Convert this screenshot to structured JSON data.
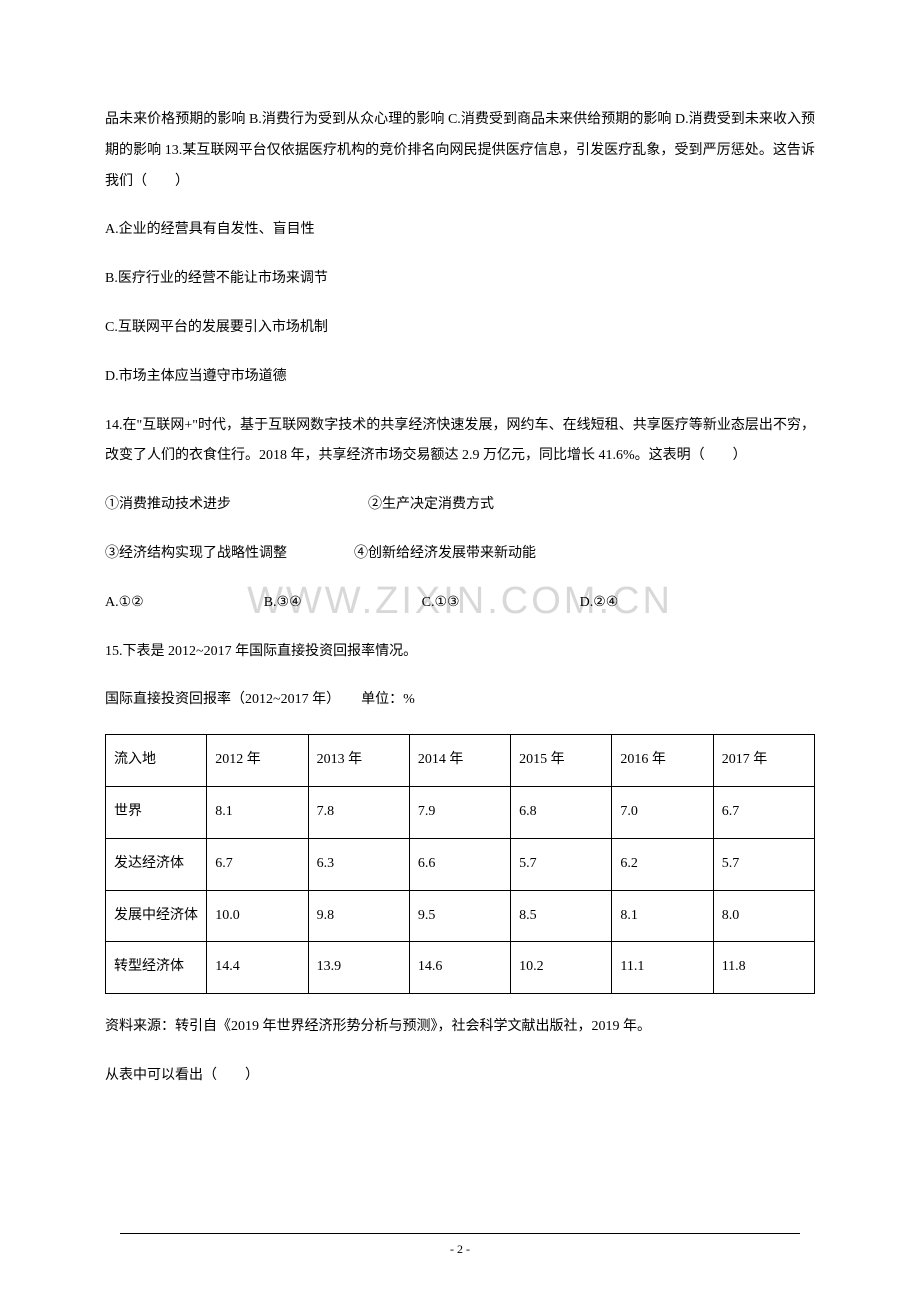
{
  "intro_paragraph": "品未来价格预期的影响 B.消费行为受到从众心理的影响 C.消费受到商品未来供给预期的影响 D.消费受到未来收入预期的影响 13.某互联网平台仅依据医疗机构的竞价排名向网民提供医疗信息，引发医疗乱象，受到严厉惩处。这告诉我们（　　）",
  "q13": {
    "optA": "A.企业的经营具有自发性、盲目性",
    "optB": "B.医疗行业的经营不能让市场来调节",
    "optC": "C.互联网平台的发展要引入市场机制",
    "optD": "D.市场主体应当遵守市场道德"
  },
  "q14": {
    "text": "14.在\"互联网+\"时代，基于互联网数字技术的共享经济快速发展，网约车、在线短租、共享医疗等新业态层出不穷，改变了人们的衣食住行。2018 年，共享经济市场交易额达 2.9 万亿元，同比增长 41.6%。这表明（　　）",
    "line1_1": "①消费推动技术进步",
    "line1_2": "②生产决定消费方式",
    "line2_1": "③经济结构实现了战略性调整",
    "line2_2": "④创新给经济发展带来新动能",
    "optA": "A.①②",
    "optB": "B.③④",
    "optC": "C.①③",
    "optD": "D.②④"
  },
  "q15": {
    "text": "15.下表是 2012~2017 年国际直接投资回报率情况。",
    "subtitle": "国际直接投资回报率（2012~2017 年）　　单位：%",
    "source": "资料来源：转引自《2019 年世界经济形势分析与预测》，社会科学文献出版社，2019 年。",
    "question": "从表中可以看出（　　）"
  },
  "table": {
    "headers": [
      "流入地",
      "2012 年",
      "2013 年",
      "2014 年",
      "2015 年",
      "2016 年",
      "2017 年"
    ],
    "rows": [
      [
        "世界",
        "8.1",
        "7.8",
        "7.9",
        "6.8",
        "7.0",
        "6.7"
      ],
      [
        "发达经济体",
        "6.7",
        "6.3",
        "6.6",
        "5.7",
        "6.2",
        "5.7"
      ],
      [
        "发展中经济体",
        "10.0",
        "9.8",
        "9.5",
        "8.5",
        "8.1",
        "8.0"
      ],
      [
        "转型经济体",
        "14.4",
        "13.9",
        "14.6",
        "10.2",
        "11.1",
        "11.8"
      ]
    ],
    "col_widths": [
      "14%",
      "14%",
      "14%",
      "14%",
      "14%",
      "14%",
      "14%"
    ]
  },
  "watermark": "WWW.ZIXIN.COM.CN",
  "page_number": "- 2 -",
  "styles": {
    "background_color": "#ffffff",
    "text_color": "#000000",
    "watermark_color": "#d8d8d8",
    "border_color": "#000000",
    "font_size": 14,
    "watermark_font_size": 38
  }
}
